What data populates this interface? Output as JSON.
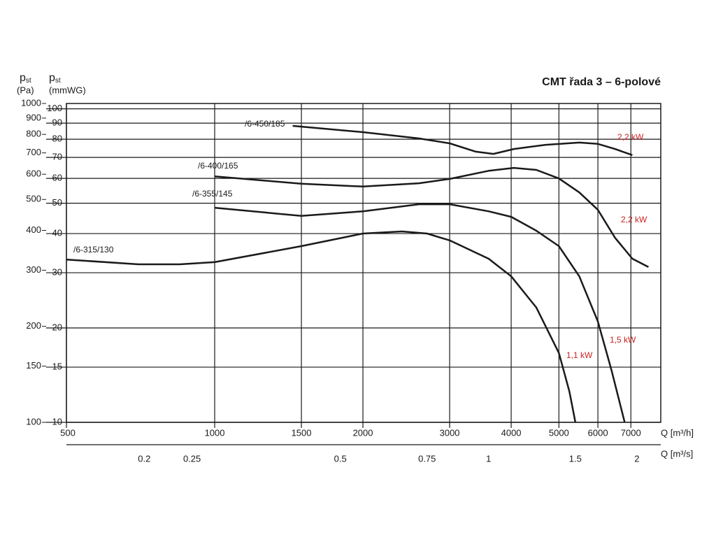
{
  "chart_data": {
    "type": "line",
    "title": "CMT řada 3 – 6-polové",
    "y_label": {
      "main": "p",
      "sub": "st",
      "unit": "(Pa)"
    },
    "y2_label": {
      "main": "p",
      "sub": "st",
      "unit": "(mmWG)"
    },
    "x_label": "Q [m³/h]",
    "x2_label": "Q [m³/s]",
    "log_x": true,
    "log_y": true,
    "grid": true,
    "xlim": [
      500,
      8050
    ],
    "xticks": [
      500,
      1000,
      1500,
      2000,
      3000,
      4000,
      5000,
      6000,
      7000
    ],
    "x2lim": [
      0.139,
      2.236
    ],
    "x2ticks": [
      0.2,
      0.25,
      0.5,
      0.75,
      1,
      1.5,
      2
    ],
    "ylim": [
      100,
      1000
    ],
    "yticks": [
      100,
      150,
      200,
      300,
      400,
      500,
      600,
      700,
      800,
      900,
      1000
    ],
    "y2lim": [
      10,
      104
    ],
    "y2ticks": [
      10,
      15,
      20,
      30,
      40,
      50,
      60,
      70,
      80,
      90,
      100
    ],
    "power_color": "#cc2222",
    "series": [
      {
        "name": "/6-315/130",
        "power": "1,1 kW",
        "color": "#1a1a1a",
        "x": [
          500,
          700,
          850,
          1000,
          1500,
          2000,
          2400,
          2700,
          3000,
          3600,
          4000,
          4500,
          5000,
          5250,
          5400
        ],
        "values": [
          324,
          313,
          313,
          318,
          357,
          391,
          397,
          391,
          372,
          326,
          287,
          229,
          165,
          125,
          100
        ]
      },
      {
        "name": "/6-355/145",
        "power": "1,5 kW",
        "color": "#1a1a1a",
        "x": [
          1000,
          1500,
          2000,
          2600,
          3000,
          3600,
          4000,
          4500,
          5000,
          5500,
          6000,
          6400,
          6800
        ],
        "values": [
          471,
          444,
          459,
          483,
          483,
          459,
          441,
          399,
          357,
          287,
          207,
          145,
          100
        ]
      },
      {
        "name": "/6-400/165",
        "power": "2,2 kW",
        "color": "#1a1a1a",
        "x": [
          1000,
          1500,
          2000,
          2600,
          3000,
          3600,
          4050,
          4500,
          5000,
          5500,
          6000,
          6500,
          7050,
          7600
        ],
        "values": [
          591,
          560,
          549,
          562,
          580,
          615,
          628,
          619,
          582,
          526,
          464,
          379,
          326,
          307
        ]
      },
      {
        "name": "/6-450/185",
        "power": "2,2 kW",
        "color": "#1a1a1a",
        "x": [
          1440,
          2000,
          2600,
          3000,
          3390,
          3680,
          4050,
          4700,
          5500,
          6000,
          6500,
          7050
        ],
        "values": [
          851,
          813,
          777,
          750,
          706,
          695,
          720,
          742,
          754,
          747,
          720,
          689
        ]
      }
    ]
  }
}
